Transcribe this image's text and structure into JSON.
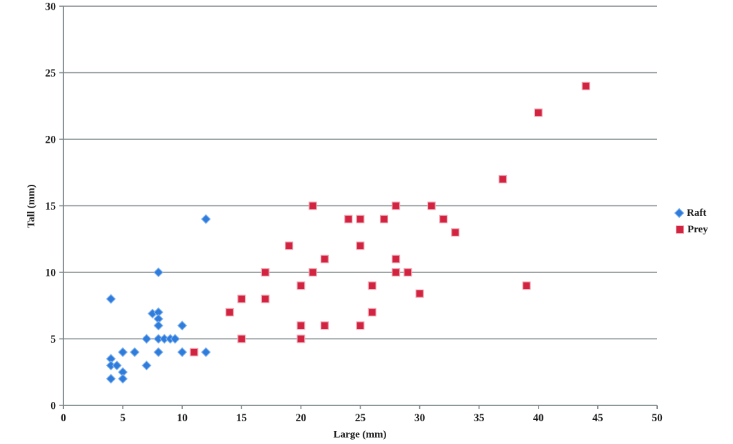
{
  "chart_data": {
    "type": "scatter",
    "title": "",
    "xlabel": "Large (mm)",
    "ylabel": "Tall (mm)",
    "xlim": [
      0,
      50
    ],
    "ylim": [
      0,
      30
    ],
    "x_ticks": [
      0,
      5,
      10,
      15,
      20,
      25,
      30,
      35,
      40,
      45,
      50
    ],
    "y_ticks": [
      0,
      5,
      10,
      15,
      20,
      25,
      30
    ],
    "grid": "horizontal-only",
    "legend_position": "right",
    "colors": {
      "gridline": "#7d8789",
      "axis": "#7d8789",
      "text": "#1b1b1b",
      "background": "#ffffff"
    },
    "series": [
      {
        "name": "Raft",
        "marker": "diamond",
        "fill": "#2e7cdb",
        "stroke": "#7fb0ee",
        "points": [
          [
            4,
            8
          ],
          [
            8,
            10
          ],
          [
            12,
            14
          ],
          [
            7.5,
            6.9
          ],
          [
            8,
            7
          ],
          [
            8,
            6.5
          ],
          [
            8,
            6
          ],
          [
            10,
            6
          ],
          [
            7,
            5
          ],
          [
            8,
            5
          ],
          [
            8.5,
            5
          ],
          [
            9,
            5
          ],
          [
            9.4,
            5
          ],
          [
            5,
            4
          ],
          [
            6,
            4
          ],
          [
            8,
            4
          ],
          [
            10,
            4
          ],
          [
            12,
            4
          ],
          [
            4,
            3.5
          ],
          [
            4,
            3
          ],
          [
            4.5,
            3
          ],
          [
            7,
            3
          ],
          [
            5,
            2.5
          ],
          [
            5,
            2
          ],
          [
            4,
            2
          ]
        ]
      },
      {
        "name": "Prey",
        "marker": "square",
        "fill": "#d22440",
        "stroke": "#f0a3b0",
        "points": [
          [
            11,
            4
          ],
          [
            15,
            5
          ],
          [
            20,
            5
          ],
          [
            20,
            6
          ],
          [
            22,
            6
          ],
          [
            25,
            6
          ],
          [
            14,
            7
          ],
          [
            26,
            7
          ],
          [
            15,
            8
          ],
          [
            17,
            8
          ],
          [
            30,
            8.4
          ],
          [
            20,
            9
          ],
          [
            26,
            9
          ],
          [
            39,
            9
          ],
          [
            17,
            10
          ],
          [
            21,
            10
          ],
          [
            28,
            10
          ],
          [
            29,
            10
          ],
          [
            22,
            11
          ],
          [
            28,
            11
          ],
          [
            19,
            12
          ],
          [
            25,
            12
          ],
          [
            33,
            13
          ],
          [
            24,
            14
          ],
          [
            25,
            14
          ],
          [
            27,
            14
          ],
          [
            32,
            14
          ],
          [
            21,
            15
          ],
          [
            28,
            15
          ],
          [
            31,
            15
          ],
          [
            37,
            17
          ],
          [
            40,
            22
          ],
          [
            44,
            24
          ]
        ]
      }
    ]
  }
}
